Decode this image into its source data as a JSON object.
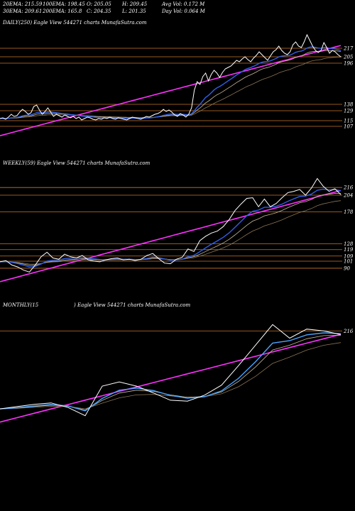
{
  "header": {
    "row1": [
      "20EMA: 215.59",
      "100EMA: 198.45",
      "O: 205.05",
      "H: 209.45",
      "Avg Vol: 0.172  M"
    ],
    "row2": [
      "30EMA: 209.61",
      "200EMA: 165.8",
      "C: 204.35",
      "L: 201.35",
      "Day Vol: 0.064  M"
    ]
  },
  "panels": {
    "daily": {
      "label": "DAILY(250) Eagle   View  544271 charts MunafaSutra.com"
    },
    "weekly": {
      "label": "WEEKLY(59) Eagle   View  544271 charts MunafaSutra.com"
    },
    "monthly": {
      "label_left": "MONTHLY(15",
      "label_right": ") Eagle   View  544271 charts MunafaSutra.com"
    }
  },
  "colors": {
    "background": "#000000",
    "price": "#ffffff",
    "ema_short": "#2f5fe8",
    "ema_long": "#4aa3ff",
    "ema_mid": "#c8b89a",
    "ema_slow": "#8a7355",
    "trend": "#ff30ff",
    "level": "#c8762a"
  },
  "chart_data": [
    {
      "type": "line",
      "name": "daily",
      "right_labels": [
        "217",
        "205",
        "196",
        "138",
        "129",
        "115",
        "107"
      ],
      "level_values": [
        217,
        205,
        196,
        138,
        129,
        115,
        107
      ],
      "ylim": [
        80,
        245
      ],
      "price": [
        118,
        119,
        117,
        120,
        124,
        121,
        122,
        127,
        131,
        128,
        124,
        126,
        135,
        137,
        130,
        124,
        128,
        133,
        127,
        121,
        124,
        122,
        120,
        123,
        121,
        119,
        121,
        118,
        120,
        116,
        118,
        120,
        119,
        117,
        116,
        118,
        117,
        119,
        118,
        120,
        118,
        117,
        119,
        118,
        117,
        116,
        118,
        120,
        119,
        118,
        117,
        119,
        121,
        120,
        122,
        124,
        125,
        127,
        131,
        128,
        130,
        127,
        123,
        121,
        125,
        123,
        120,
        124,
        133,
        158,
        170,
        166,
        177,
        182,
        171,
        180,
        186,
        182,
        176,
        183,
        188,
        190,
        192,
        196,
        200,
        198,
        202,
        205,
        201,
        198,
        203,
        207,
        212,
        208,
        204,
        200,
        206,
        212,
        215,
        220,
        214,
        210,
        208,
        212,
        222,
        226,
        220,
        218,
        226,
        236,
        228,
        220,
        214,
        211,
        214,
        225,
        218,
        210,
        214,
        212,
        208,
        205
      ]
    },
    {
      "type": "line",
      "name": "weekly",
      "right_labels": [
        "216",
        "204",
        "178",
        "128",
        "119",
        "109",
        "101",
        "90"
      ],
      "level_values": [
        216,
        204,
        178,
        128,
        119,
        109,
        101,
        90
      ],
      "ylim": [
        60,
        245
      ],
      "price": [
        100,
        102,
        95,
        92,
        87,
        84,
        95,
        108,
        115,
        106,
        104,
        112,
        108,
        106,
        110,
        103,
        101,
        100,
        103,
        105,
        106,
        103,
        104,
        102,
        104,
        110,
        113,
        105,
        98,
        97,
        104,
        107,
        120,
        116,
        133,
        140,
        145,
        148,
        155,
        166,
        180,
        190,
        199,
        200,
        186,
        198,
        186,
        191,
        200,
        208,
        210,
        213,
        204,
        215,
        230,
        218,
        210,
        214,
        205
      ]
    },
    {
      "type": "line",
      "name": "monthly",
      "right_labels": [
        "216"
      ],
      "level_values": [
        216
      ],
      "ylim": [
        0,
        260
      ],
      "price": [
        45,
        50,
        55,
        58,
        48,
        30,
        95,
        104,
        95,
        80,
        64,
        62,
        75,
        97,
        140,
        185,
        230,
        200,
        220,
        216,
        208
      ]
    }
  ]
}
